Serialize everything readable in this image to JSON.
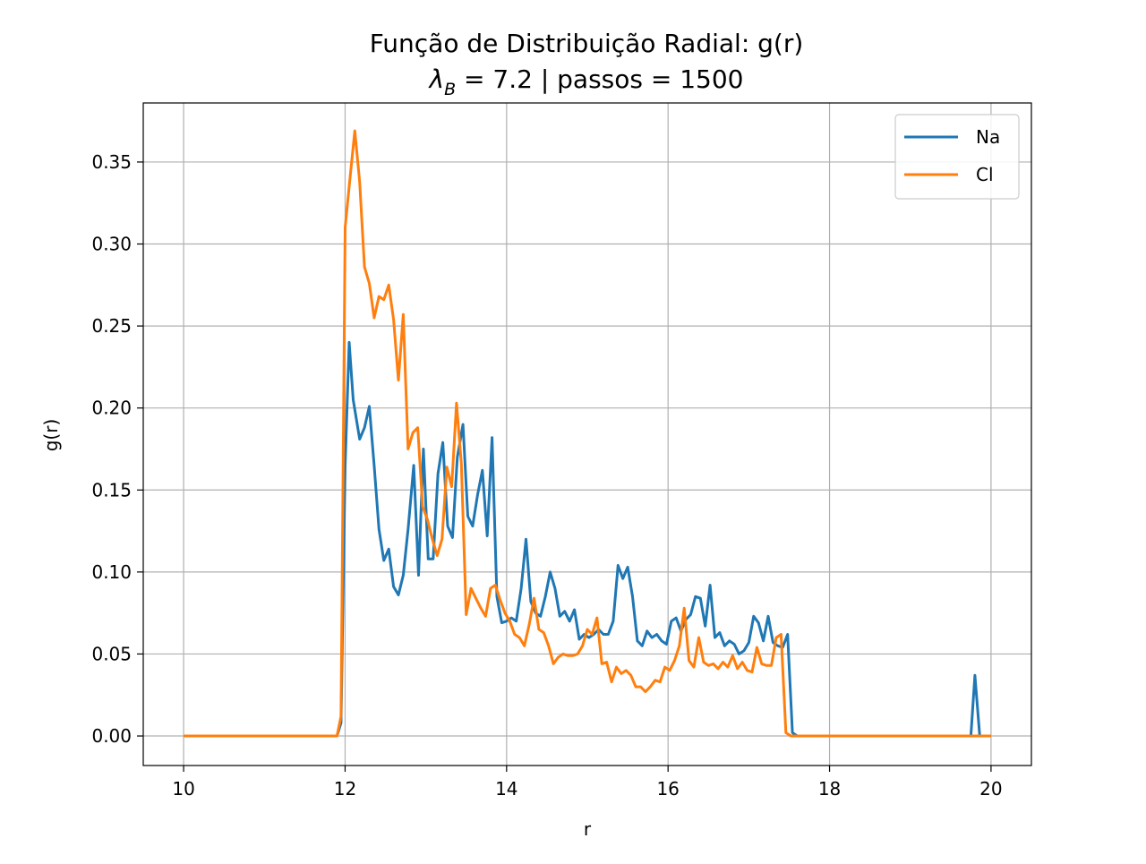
{
  "chart_data": {
    "type": "line",
    "title_line1": "Função de Distribuição Radial: g(r)",
    "title_line2_symbol": "λ",
    "title_line2_subscript": "B",
    "title_line2_rest": " = 7.2 | passos = 1500",
    "xlabel": "r",
    "ylabel": "g(r)",
    "xlim": [
      9.5,
      20.5
    ],
    "ylim": [
      -0.018,
      0.386
    ],
    "xticks": [
      10,
      12,
      14,
      16,
      18,
      20
    ],
    "xtick_labels": [
      "10",
      "12",
      "14",
      "16",
      "18",
      "20"
    ],
    "yticks": [
      0.0,
      0.05,
      0.1,
      0.15,
      0.2,
      0.25,
      0.3,
      0.35
    ],
    "ytick_labels": [
      "0.00",
      "0.05",
      "0.10",
      "0.15",
      "0.20",
      "0.25",
      "0.30",
      "0.35"
    ],
    "grid": true,
    "legend_position": "top-right",
    "series": [
      {
        "name": "Na",
        "color": "#1f77b4",
        "points": [
          [
            10.0,
            0.0
          ],
          [
            11.9,
            0.0
          ],
          [
            11.95,
            0.008
          ],
          [
            12.0,
            0.165
          ],
          [
            12.05,
            0.24
          ],
          [
            12.1,
            0.205
          ],
          [
            12.18,
            0.181
          ],
          [
            12.24,
            0.188
          ],
          [
            12.3,
            0.201
          ],
          [
            12.36,
            0.165
          ],
          [
            12.42,
            0.126
          ],
          [
            12.48,
            0.107
          ],
          [
            12.54,
            0.114
          ],
          [
            12.6,
            0.091
          ],
          [
            12.66,
            0.086
          ],
          [
            12.72,
            0.098
          ],
          [
            12.78,
            0.126
          ],
          [
            12.85,
            0.165
          ],
          [
            12.91,
            0.098
          ],
          [
            12.97,
            0.175
          ],
          [
            13.03,
            0.108
          ],
          [
            13.09,
            0.108
          ],
          [
            13.15,
            0.16
          ],
          [
            13.21,
            0.179
          ],
          [
            13.27,
            0.128
          ],
          [
            13.33,
            0.121
          ],
          [
            13.39,
            0.17
          ],
          [
            13.46,
            0.19
          ],
          [
            13.52,
            0.134
          ],
          [
            13.58,
            0.128
          ],
          [
            13.64,
            0.147
          ],
          [
            13.7,
            0.162
          ],
          [
            13.76,
            0.122
          ],
          [
            13.82,
            0.182
          ],
          [
            13.88,
            0.085
          ],
          [
            13.94,
            0.069
          ],
          [
            14.0,
            0.07
          ],
          [
            14.06,
            0.072
          ],
          [
            14.12,
            0.07
          ],
          [
            14.18,
            0.09
          ],
          [
            14.24,
            0.12
          ],
          [
            14.3,
            0.082
          ],
          [
            14.36,
            0.075
          ],
          [
            14.42,
            0.073
          ],
          [
            14.48,
            0.085
          ],
          [
            14.54,
            0.1
          ],
          [
            14.6,
            0.09
          ],
          [
            14.66,
            0.073
          ],
          [
            14.72,
            0.076
          ],
          [
            14.78,
            0.07
          ],
          [
            14.84,
            0.077
          ],
          [
            14.9,
            0.059
          ],
          [
            14.96,
            0.062
          ],
          [
            15.02,
            0.06
          ],
          [
            15.08,
            0.062
          ],
          [
            15.14,
            0.065
          ],
          [
            15.2,
            0.062
          ],
          [
            15.26,
            0.062
          ],
          [
            15.32,
            0.07
          ],
          [
            15.38,
            0.104
          ],
          [
            15.44,
            0.096
          ],
          [
            15.5,
            0.103
          ],
          [
            15.56,
            0.085
          ],
          [
            15.62,
            0.058
          ],
          [
            15.68,
            0.055
          ],
          [
            15.74,
            0.064
          ],
          [
            15.8,
            0.06
          ],
          [
            15.86,
            0.062
          ],
          [
            15.92,
            0.058
          ],
          [
            15.98,
            0.056
          ],
          [
            16.04,
            0.07
          ],
          [
            16.1,
            0.072
          ],
          [
            16.16,
            0.064
          ],
          [
            16.22,
            0.071
          ],
          [
            16.28,
            0.074
          ],
          [
            16.34,
            0.085
          ],
          [
            16.4,
            0.084
          ],
          [
            16.46,
            0.067
          ],
          [
            16.52,
            0.092
          ],
          [
            16.58,
            0.06
          ],
          [
            16.64,
            0.063
          ],
          [
            16.7,
            0.055
          ],
          [
            16.76,
            0.058
          ],
          [
            16.82,
            0.056
          ],
          [
            16.88,
            0.05
          ],
          [
            16.94,
            0.052
          ],
          [
            17.0,
            0.057
          ],
          [
            17.06,
            0.073
          ],
          [
            17.12,
            0.069
          ],
          [
            17.18,
            0.058
          ],
          [
            17.24,
            0.073
          ],
          [
            17.3,
            0.057
          ],
          [
            17.36,
            0.055
          ],
          [
            17.42,
            0.054
          ],
          [
            17.48,
            0.062
          ],
          [
            17.54,
            0.002
          ],
          [
            17.6,
            0.0
          ],
          [
            19.75,
            0.0
          ],
          [
            19.8,
            0.037
          ],
          [
            19.86,
            0.0
          ],
          [
            20.0,
            0.0
          ]
        ]
      },
      {
        "name": "Cl",
        "color": "#ff7f0e",
        "points": [
          [
            10.0,
            0.0
          ],
          [
            11.9,
            0.0
          ],
          [
            11.95,
            0.012
          ],
          [
            12.0,
            0.31
          ],
          [
            12.06,
            0.34
          ],
          [
            12.12,
            0.369
          ],
          [
            12.18,
            0.338
          ],
          [
            12.24,
            0.286
          ],
          [
            12.3,
            0.276
          ],
          [
            12.36,
            0.255
          ],
          [
            12.42,
            0.268
          ],
          [
            12.48,
            0.266
          ],
          [
            12.54,
            0.275
          ],
          [
            12.6,
            0.254
          ],
          [
            12.66,
            0.217
          ],
          [
            12.72,
            0.257
          ],
          [
            12.78,
            0.175
          ],
          [
            12.84,
            0.185
          ],
          [
            12.9,
            0.188
          ],
          [
            12.96,
            0.14
          ],
          [
            13.02,
            0.132
          ],
          [
            13.08,
            0.12
          ],
          [
            13.14,
            0.11
          ],
          [
            13.2,
            0.12
          ],
          [
            13.26,
            0.164
          ],
          [
            13.32,
            0.152
          ],
          [
            13.38,
            0.203
          ],
          [
            13.44,
            0.166
          ],
          [
            13.5,
            0.074
          ],
          [
            13.56,
            0.09
          ],
          [
            13.62,
            0.084
          ],
          [
            13.68,
            0.078
          ],
          [
            13.74,
            0.073
          ],
          [
            13.8,
            0.09
          ],
          [
            13.86,
            0.092
          ],
          [
            13.92,
            0.083
          ],
          [
            13.98,
            0.075
          ],
          [
            14.04,
            0.07
          ],
          [
            14.1,
            0.062
          ],
          [
            14.16,
            0.06
          ],
          [
            14.22,
            0.055
          ],
          [
            14.28,
            0.068
          ],
          [
            14.34,
            0.084
          ],
          [
            14.4,
            0.065
          ],
          [
            14.46,
            0.063
          ],
          [
            14.52,
            0.055
          ],
          [
            14.58,
            0.044
          ],
          [
            14.64,
            0.048
          ],
          [
            14.7,
            0.05
          ],
          [
            14.76,
            0.049
          ],
          [
            14.82,
            0.049
          ],
          [
            14.88,
            0.05
          ],
          [
            14.94,
            0.055
          ],
          [
            15.0,
            0.065
          ],
          [
            15.06,
            0.062
          ],
          [
            15.12,
            0.072
          ],
          [
            15.18,
            0.044
          ],
          [
            15.24,
            0.045
          ],
          [
            15.3,
            0.033
          ],
          [
            15.36,
            0.042
          ],
          [
            15.42,
            0.038
          ],
          [
            15.48,
            0.04
          ],
          [
            15.54,
            0.037
          ],
          [
            15.6,
            0.03
          ],
          [
            15.66,
            0.03
          ],
          [
            15.72,
            0.027
          ],
          [
            15.78,
            0.03
          ],
          [
            15.84,
            0.034
          ],
          [
            15.9,
            0.033
          ],
          [
            15.96,
            0.042
          ],
          [
            16.02,
            0.04
          ],
          [
            16.08,
            0.046
          ],
          [
            16.14,
            0.055
          ],
          [
            16.2,
            0.078
          ],
          [
            16.26,
            0.046
          ],
          [
            16.32,
            0.042
          ],
          [
            16.38,
            0.06
          ],
          [
            16.44,
            0.045
          ],
          [
            16.5,
            0.043
          ],
          [
            16.56,
            0.044
          ],
          [
            16.62,
            0.041
          ],
          [
            16.68,
            0.045
          ],
          [
            16.74,
            0.042
          ],
          [
            16.8,
            0.049
          ],
          [
            16.86,
            0.041
          ],
          [
            16.92,
            0.045
          ],
          [
            16.98,
            0.04
          ],
          [
            17.04,
            0.039
          ],
          [
            17.1,
            0.054
          ],
          [
            17.16,
            0.044
          ],
          [
            17.22,
            0.043
          ],
          [
            17.28,
            0.043
          ],
          [
            17.34,
            0.06
          ],
          [
            17.4,
            0.062
          ],
          [
            17.46,
            0.002
          ],
          [
            17.52,
            0.0
          ],
          [
            20.0,
            0.0
          ]
        ]
      }
    ]
  }
}
